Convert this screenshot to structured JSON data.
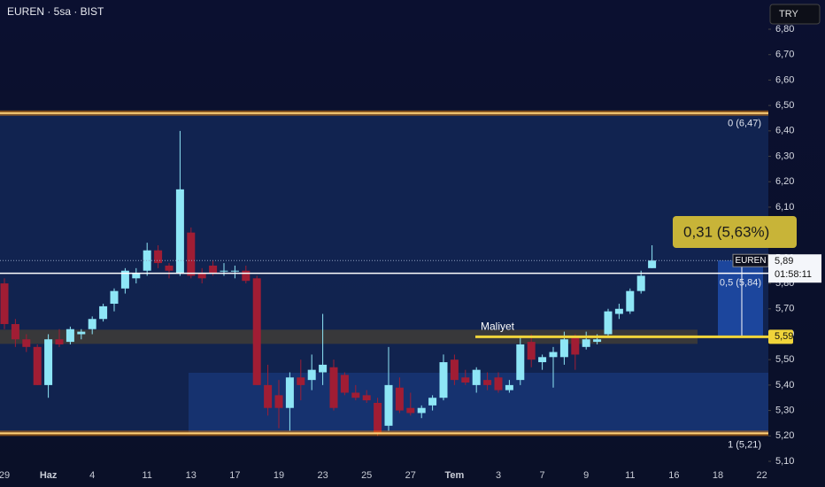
{
  "chart_data": {
    "type": "candlestick",
    "title": "EUREN · 5sa · BIST",
    "currency_button": "TRY",
    "categories": [
      "29",
      null,
      null,
      null,
      "Haz",
      null,
      null,
      null,
      "4",
      null,
      null,
      null,
      null,
      "11",
      null,
      null,
      null,
      "13",
      null,
      null,
      null,
      "17",
      null,
      null,
      null,
      "19",
      null,
      null,
      null,
      "23",
      null,
      null,
      null,
      "25",
      null,
      null,
      null,
      "27",
      null,
      null,
      null,
      "Tem",
      null,
      null,
      null,
      "3",
      null,
      null,
      null,
      "7",
      null,
      null,
      null,
      "9",
      null,
      null,
      null,
      "11",
      null,
      null,
      null,
      "16",
      null,
      null,
      null,
      "18",
      null,
      null,
      null,
      "22"
    ],
    "open": [
      5.8,
      5.64,
      5.58,
      5.55,
      5.4,
      5.58,
      5.57,
      5.6,
      5.62,
      5.66,
      5.72,
      5.78,
      5.82,
      5.85,
      5.93,
      5.87,
      5.84,
      6.0,
      5.84,
      5.87,
      5.85,
      5.85,
      5.85,
      5.82,
      5.4,
      5.36,
      5.31,
      5.43,
      5.42,
      5.45,
      5.47,
      5.44,
      5.37,
      5.36,
      5.33,
      5.24,
      5.39,
      5.31,
      5.29,
      5.32,
      5.35,
      5.5,
      5.43,
      5.4,
      5.42,
      5.43,
      5.38,
      5.42,
      5.57,
      5.49,
      5.51,
      5.51,
      5.59,
      5.55,
      5.57,
      5.6,
      5.68,
      5.69,
      5.77,
      5.86,
      null,
      null,
      null,
      null,
      null,
      null,
      null,
      null,
      null,
      null
    ],
    "high": [
      5.82,
      5.66,
      5.6,
      5.56,
      5.6,
      5.62,
      5.63,
      5.62,
      5.67,
      5.72,
      5.78,
      5.86,
      5.86,
      5.96,
      5.95,
      5.88,
      6.4,
      6.02,
      5.86,
      5.89,
      5.88,
      5.87,
      5.87,
      5.83,
      5.48,
      5.42,
      5.45,
      5.5,
      5.52,
      5.68,
      5.5,
      5.45,
      5.4,
      5.38,
      5.35,
      5.55,
      5.43,
      5.37,
      5.32,
      5.36,
      5.52,
      5.52,
      5.46,
      5.47,
      5.45,
      5.45,
      5.42,
      5.59,
      5.6,
      5.52,
      5.55,
      5.61,
      5.6,
      5.61,
      5.6,
      5.7,
      5.72,
      5.78,
      5.85,
      5.95,
      null,
      null,
      null,
      null,
      null,
      null,
      null,
      null,
      null,
      null
    ],
    "low": [
      5.62,
      5.55,
      5.53,
      5.4,
      5.35,
      5.55,
      5.56,
      5.58,
      5.6,
      5.65,
      5.69,
      5.76,
      5.8,
      5.83,
      5.86,
      5.82,
      5.83,
      5.82,
      5.8,
      5.83,
      5.83,
      5.82,
      5.8,
      5.4,
      5.28,
      5.23,
      5.22,
      5.34,
      5.38,
      5.4,
      5.3,
      5.36,
      5.34,
      5.33,
      5.2,
      5.22,
      5.29,
      5.28,
      5.27,
      5.3,
      5.34,
      5.4,
      5.4,
      5.37,
      5.38,
      5.37,
      5.37,
      5.4,
      5.47,
      5.46,
      5.39,
      5.48,
      5.46,
      5.54,
      5.56,
      5.59,
      5.66,
      5.68,
      5.76,
      5.86,
      null,
      null,
      null,
      null,
      null,
      null,
      null,
      null,
      null,
      null
    ],
    "close": [
      5.64,
      5.58,
      5.55,
      5.4,
      5.58,
      5.56,
      5.62,
      5.61,
      5.66,
      5.71,
      5.77,
      5.85,
      5.84,
      5.93,
      5.88,
      5.85,
      6.17,
      5.83,
      5.82,
      5.84,
      5.85,
      5.85,
      5.81,
      5.4,
      5.31,
      5.31,
      5.43,
      5.4,
      5.46,
      5.48,
      5.31,
      5.37,
      5.35,
      5.34,
      5.21,
      5.4,
      5.3,
      5.29,
      5.31,
      5.35,
      5.49,
      5.42,
      5.41,
      5.46,
      5.4,
      5.38,
      5.4,
      5.56,
      5.5,
      5.51,
      5.53,
      5.58,
      5.52,
      5.58,
      5.58,
      5.69,
      5.7,
      5.77,
      5.83,
      5.89,
      null,
      null,
      null,
      null,
      null,
      null,
      null,
      null,
      null,
      null
    ],
    "up_color": "#8ee6f6",
    "down_color": "#a01d34",
    "ylim": [
      5.0756,
      6.915
    ],
    "yticks": [
      {
        "value": 5.1,
        "label": "5,10"
      },
      {
        "value": 5.2,
        "label": "5,20"
      },
      {
        "value": 5.3,
        "label": "5,30"
      },
      {
        "value": 5.4,
        "label": "5,40"
      },
      {
        "value": 5.5,
        "label": "5,50"
      },
      {
        "value": 5.6,
        "label": "5,60"
      },
      {
        "value": 5.7,
        "label": "5,70"
      },
      {
        "value": 5.8,
        "label": "5,80"
      },
      {
        "value": 5.9,
        "label": "5,90"
      },
      {
        "value": 6.0,
        "label": "6,00"
      },
      {
        "value": 6.1,
        "label": "6,10"
      },
      {
        "value": 6.2,
        "label": "6,20"
      },
      {
        "value": 6.3,
        "label": "6,30"
      },
      {
        "value": 6.4,
        "label": "6,40"
      },
      {
        "value": 6.5,
        "label": "6,50"
      },
      {
        "value": 6.6,
        "label": "6,60"
      },
      {
        "value": 6.7,
        "label": "6,70"
      },
      {
        "value": 6.8,
        "label": "6,80"
      }
    ],
    "fib_levels": [
      {
        "value": 6.47,
        "label": "0 (6,47)"
      },
      {
        "value": 5.84,
        "label": "0,5 (5,84)"
      },
      {
        "value": 5.21,
        "label": "1 (5,21)"
      }
    ],
    "cost_line": {
      "name": "Maliyet",
      "value": 5.59,
      "label": "5,59"
    },
    "last_price": {
      "symbol": "EUREN",
      "value": 5.89,
      "label": "5,89",
      "countdown": "01:58:11"
    },
    "gain_label": "0,31 (5,63%)"
  }
}
